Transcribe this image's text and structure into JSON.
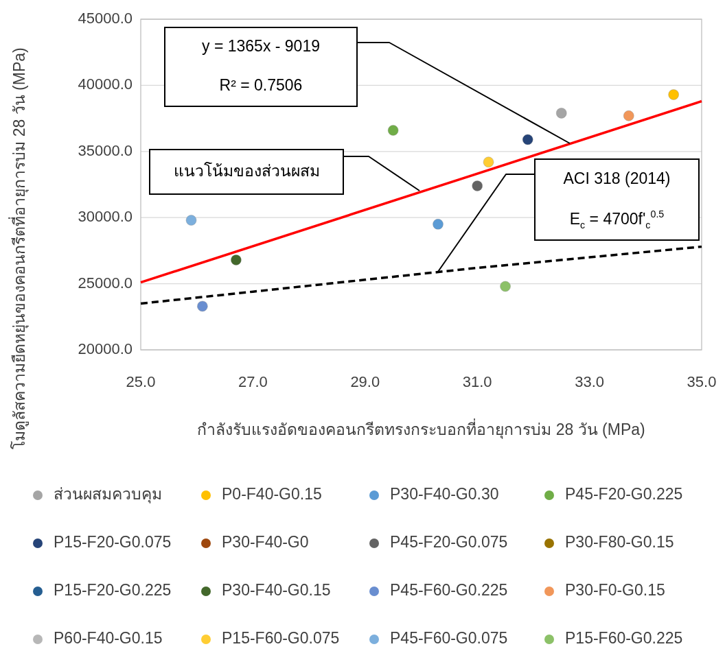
{
  "chart_data": {
    "type": "scatter",
    "xlabel": "กำลังรับแรงอัดของคอนกรีตทรงกระบอกที่อายุการบ่ม 28 วัน (MPa)",
    "ylabel": "โมดูลัสความยืดหยุ่นของคอนกรีตที่อายุการบ่ม 28 วัน (MPa)",
    "xlim": [
      25,
      35
    ],
    "ylim": [
      20000,
      45000
    ],
    "xticks": [
      {
        "value": 25,
        "label": "25.0"
      },
      {
        "value": 27,
        "label": "27.0"
      },
      {
        "value": 29,
        "label": "29.0"
      },
      {
        "value": 31,
        "label": "31.0"
      },
      {
        "value": 33,
        "label": "33.0"
      },
      {
        "value": 35,
        "label": "35.0"
      }
    ],
    "yticks": [
      {
        "value": 20000,
        "label": "20000.0"
      },
      {
        "value": 25000,
        "label": "25000.0"
      },
      {
        "value": 30000,
        "label": "30000.0"
      },
      {
        "value": 35000,
        "label": "35000.0"
      },
      {
        "value": 40000,
        "label": "40000.0"
      },
      {
        "value": 45000,
        "label": "45000.0"
      }
    ],
    "grid": "y",
    "legend": "bottom",
    "marker": "circle",
    "series": [
      {
        "name": "ส่วนผสมควบคุม",
        "color": "#a5a5a5",
        "x": [
          32.5
        ],
        "values": [
          37900
        ]
      },
      {
        "name": "P0-F40-G0.15",
        "color": "#ffc000",
        "x": [
          34.5
        ],
        "values": [
          39300
        ]
      },
      {
        "name": "P30-F40-G0.30",
        "color": "#5b9bd5",
        "x": [
          30.3
        ],
        "values": [
          29500
        ]
      },
      {
        "name": "P45-F20-G0.225",
        "color": "#70ad47",
        "x": [
          29.5
        ],
        "values": [
          36600
        ]
      },
      {
        "name": "P15-F20-G0.075",
        "color": "#264478",
        "x": [
          31.9
        ],
        "values": [
          35900
        ]
      },
      {
        "name": "P30-F40-G0",
        "color": "#9e480e",
        "x": [
          null
        ],
        "values": [
          null
        ]
      },
      {
        "name": "P45-F20-G0.075",
        "color": "#636363",
        "x": [
          31.0
        ],
        "values": [
          32400
        ]
      },
      {
        "name": "P30-F80-G0.15",
        "color": "#997300",
        "x": [
          null
        ],
        "values": [
          null
        ]
      },
      {
        "name": "P15-F20-G0.225",
        "color": "#255e91",
        "x": [
          null
        ],
        "values": [
          null
        ]
      },
      {
        "name": "P30-F40-G0.15",
        "color": "#43682b",
        "x": [
          26.7
        ],
        "values": [
          26800
        ]
      },
      {
        "name": "P45-F60-G0.225",
        "color": "#698ed0",
        "x": [
          26.1
        ],
        "values": [
          23300
        ]
      },
      {
        "name": "P30-F0-G0.15",
        "color": "#f1975a",
        "x": [
          33.7
        ],
        "values": [
          37700
        ]
      },
      {
        "name": "P60-F40-G0.15",
        "color": "#b7b7b7",
        "x": [
          null
        ],
        "values": [
          null
        ]
      },
      {
        "name": "P15-F60-G0.075",
        "color": "#ffcd33",
        "x": [
          31.2
        ],
        "values": [
          34200
        ]
      },
      {
        "name": "P45-F60-G0.075",
        "color": "#7cafdd",
        "x": [
          25.9
        ],
        "values": [
          29800
        ]
      },
      {
        "name": "P15-F60-G0.225",
        "color": "#8cc168",
        "x": [
          31.5
        ],
        "values": [
          24800
        ]
      },
      {
        "type": "line",
        "color": "#ff0000",
        "line_style": "solid",
        "marker": "none",
        "x": [
          25,
          35
        ],
        "values": [
          25100,
          38800
        ]
      },
      {
        "type": "line",
        "color": "#000000",
        "line_style": "dashed",
        "marker": "none",
        "x": [
          25,
          27,
          29,
          31,
          33,
          35
        ],
        "values": [
          23500,
          24400,
          25300,
          26200,
          27000,
          27800
        ]
      }
    ],
    "annotations": [
      "y = 1365x - 9019",
      "R² = 0.7506",
      "แนวโน้มของส่วนผสม",
      "ACI 318 (2014)",
      "E$_{c}$ = 4700f'$_{c}$$^{0.5}$"
    ]
  }
}
